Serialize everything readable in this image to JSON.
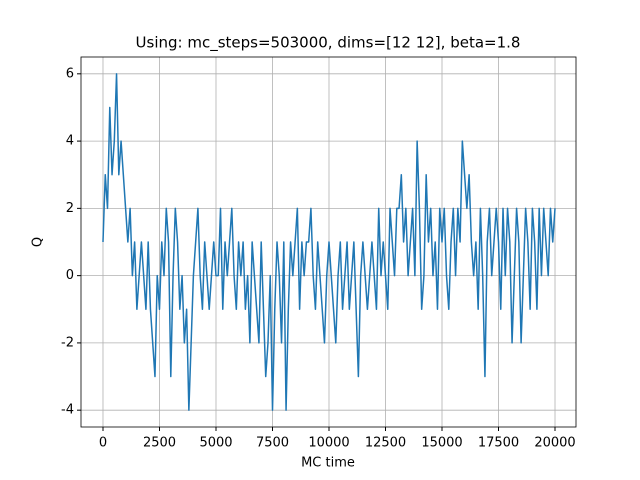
{
  "chart_data": {
    "type": "line",
    "title": "Using: mc_steps=503000, dims=[12 12], beta=1.8",
    "xlabel": "MC time",
    "ylabel": "Q",
    "color": "#1f77b4",
    "grid": true,
    "xlim": [
      -973,
      20929
    ],
    "ylim": [
      -4.5,
      6.5
    ],
    "xticks": [
      0,
      2500,
      5000,
      7500,
      10000,
      12500,
      15000,
      17500,
      20000
    ],
    "yticks": [
      -4,
      -2,
      0,
      2,
      4,
      6
    ],
    "x": [
      0,
      100,
      200,
      300,
      400,
      500,
      600,
      700,
      800,
      900,
      1000,
      1100,
      1200,
      1300,
      1400,
      1500,
      1600,
      1700,
      1800,
      1900,
      2000,
      2100,
      2200,
      2300,
      2400,
      2500,
      2600,
      2700,
      2800,
      2900,
      3000,
      3100,
      3200,
      3300,
      3400,
      3500,
      3600,
      3700,
      3800,
      3900,
      4000,
      4100,
      4200,
      4300,
      4400,
      4500,
      4600,
      4700,
      4800,
      4900,
      5000,
      5100,
      5200,
      5300,
      5400,
      5500,
      5600,
      5700,
      5800,
      5900,
      6000,
      6100,
      6200,
      6300,
      6400,
      6500,
      6600,
      6700,
      6800,
      6900,
      7000,
      7100,
      7200,
      7300,
      7400,
      7500,
      7600,
      7700,
      7800,
      7900,
      8000,
      8100,
      8200,
      8300,
      8400,
      8500,
      8600,
      8700,
      8800,
      8900,
      9000,
      9100,
      9200,
      9300,
      9400,
      9500,
      9600,
      9700,
      9800,
      9900,
      10000,
      10100,
      10200,
      10300,
      10400,
      10500,
      10600,
      10700,
      10800,
      10900,
      11000,
      11100,
      11200,
      11300,
      11400,
      11500,
      11600,
      11700,
      11800,
      11900,
      12000,
      12100,
      12200,
      12300,
      12400,
      12500,
      12600,
      12700,
      12800,
      12900,
      13000,
      13100,
      13200,
      13300,
      13400,
      13500,
      13600,
      13700,
      13800,
      13900,
      14000,
      14100,
      14200,
      14300,
      14400,
      14500,
      14600,
      14700,
      14800,
      14900,
      15000,
      15100,
      15200,
      15300,
      15400,
      15500,
      15600,
      15700,
      15800,
      15900,
      16000,
      16100,
      16200,
      16300,
      16400,
      16500,
      16600,
      16700,
      16800,
      16900,
      17000,
      17100,
      17200,
      17300,
      17400,
      17500,
      17600,
      17700,
      17800,
      17900,
      18000,
      18100,
      18200,
      18300,
      18400,
      18500,
      18600,
      18700,
      18800,
      18900,
      19000,
      19100,
      19200,
      19300,
      19400,
      19500,
      19600,
      19700,
      19800,
      19900,
      20000
    ],
    "values": [
      1,
      3,
      2,
      5,
      3,
      4,
      6,
      3,
      4,
      3,
      2,
      1,
      2,
      0,
      1,
      -1,
      0,
      1,
      0,
      -1,
      1,
      -1,
      -2,
      -3,
      0,
      -1,
      1,
      0,
      2,
      1,
      -3,
      0,
      2,
      1,
      -1,
      0,
      -2,
      -1,
      -4,
      -2,
      0,
      1,
      2,
      0,
      -1,
      1,
      0,
      -1,
      0,
      1,
      0,
      0,
      2,
      -1,
      1,
      0,
      1,
      2,
      0,
      -1,
      1,
      0,
      1,
      -1,
      0,
      -2,
      1,
      0,
      -1,
      -2,
      1,
      -1,
      -3,
      -2,
      0,
      -4,
      -1,
      1,
      0,
      -2,
      1,
      -4,
      -1,
      1,
      0,
      1,
      2,
      -1,
      1,
      0,
      1,
      1,
      2,
      0,
      -1,
      1,
      0,
      -1,
      -2,
      0,
      1,
      0,
      -1,
      -2,
      0,
      1,
      -1,
      0,
      1,
      -1,
      0,
      1,
      -1,
      -3,
      0,
      1,
      0,
      -1,
      0,
      1,
      0,
      -1,
      2,
      0,
      1,
      0,
      -1,
      2,
      1,
      0,
      2,
      2,
      3,
      1,
      2,
      0,
      1,
      2,
      0,
      4,
      2,
      -1,
      0,
      3,
      1,
      2,
      0,
      1,
      -1,
      2,
      1,
      2,
      0,
      -1,
      1,
      2,
      0,
      2,
      1,
      4,
      3,
      2,
      3,
      1,
      0,
      1,
      -1,
      2,
      0,
      -3,
      1,
      2,
      0,
      1,
      2,
      1,
      -1,
      2,
      0,
      2,
      1,
      -2,
      0,
      2,
      1,
      -2,
      0,
      2,
      1,
      -1,
      2,
      1,
      -1,
      2,
      0,
      2,
      1,
      0,
      2,
      1,
      2
    ]
  }
}
